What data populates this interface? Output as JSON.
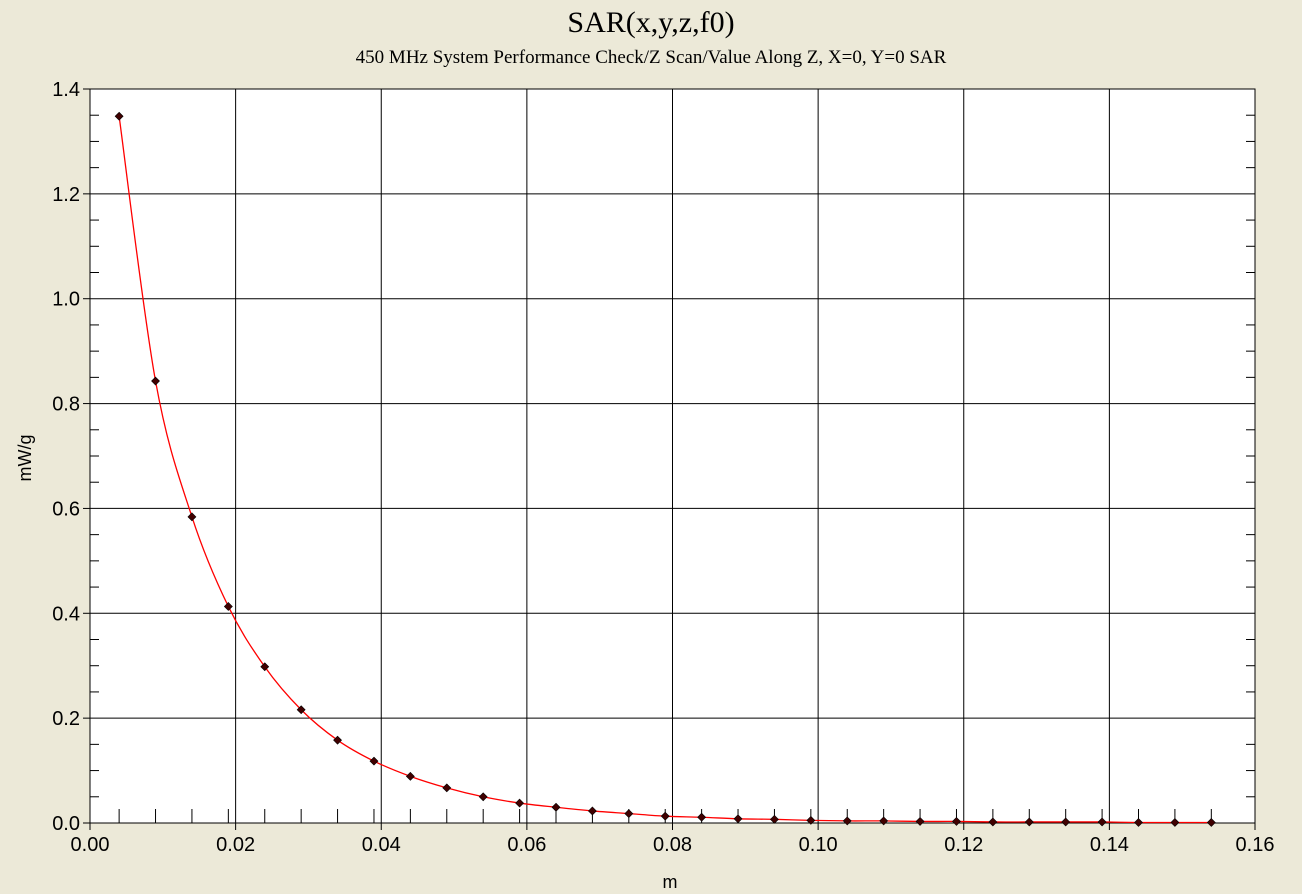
{
  "chart_data": {
    "type": "line",
    "title": "SAR(x,y,z,f0)",
    "subtitle": "450 MHz System Performance Check/Z Scan/Value Along Z, X=0, Y=0 SAR",
    "xlabel": "m",
    "ylabel": "mW/g",
    "xlim": [
      0.0,
      0.16
    ],
    "ylim": [
      0.0,
      1.4
    ],
    "x_ticks": [
      "0.00",
      "0.02",
      "0.04",
      "0.06",
      "0.08",
      "0.10",
      "0.12",
      "0.14",
      "0.16"
    ],
    "y_ticks": [
      "0.0",
      "0.2",
      "0.4",
      "0.6",
      "0.8",
      "1.0",
      "1.2",
      "1.4"
    ],
    "grid": true,
    "colors": {
      "background": "#ece9d8",
      "plot_area": "#ffffff",
      "line": "#ff0000",
      "marker": "#400000",
      "grid": "#000000"
    },
    "series": [
      {
        "x": [
          0.004,
          0.009,
          0.014,
          0.019,
          0.024,
          0.029,
          0.034,
          0.039,
          0.044,
          0.049,
          0.054,
          0.059,
          0.064,
          0.069,
          0.074,
          0.079,
          0.084,
          0.089,
          0.094,
          0.099,
          0.104,
          0.109,
          0.114,
          0.119,
          0.124,
          0.129,
          0.134,
          0.139,
          0.144,
          0.149,
          0.154
        ],
        "values": [
          1.348,
          0.843,
          0.584,
          0.413,
          0.298,
          0.216,
          0.158,
          0.118,
          0.089,
          0.067,
          0.05,
          0.038,
          0.03,
          0.023,
          0.018,
          0.013,
          0.011,
          0.008,
          0.007,
          0.005,
          0.004,
          0.004,
          0.003,
          0.003,
          0.002,
          0.002,
          0.002,
          0.002,
          0.001,
          0.001,
          0.001
        ]
      }
    ]
  }
}
